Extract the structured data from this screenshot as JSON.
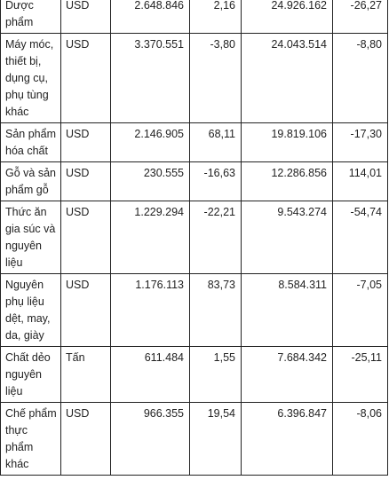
{
  "table": {
    "rows": [
      {
        "item": "Dược phẩm",
        "unit": "USD",
        "value_a": "2.648.846",
        "change_a": "2,16",
        "value_b": "24.926.162",
        "change_b": "-26,27"
      },
      {
        "item": "Máy móc, thiết bị, dụng cụ, phụ tùng khác",
        "unit": "USD",
        "value_a": "3.370.551",
        "change_a": "-3,80",
        "value_b": "24.043.514",
        "change_b": "-8,80"
      },
      {
        "item": "Sản phẩm hóa chất",
        "unit": "USD",
        "value_a": "2.146.905",
        "change_a": "68,11",
        "value_b": "19.819.106",
        "change_b": "-17,30"
      },
      {
        "item": "Gỗ và sản phẩm gỗ",
        "unit": "USD",
        "value_a": "230.555",
        "change_a": "-16,63",
        "value_b": "12.286.856",
        "change_b": "114,01"
      },
      {
        "item": "Thức ăn gia súc và nguyên liệu",
        "unit": "USD",
        "value_a": "1.229.294",
        "change_a": "-22,21",
        "value_b": "9.543.274",
        "change_b": "-54,74"
      },
      {
        "item": "Nguyên phụ liệu dệt, may, da, giày",
        "unit": "USD",
        "value_a": "1.176.113",
        "change_a": "83,73",
        "value_b": "8.584.311",
        "change_b": "-7,05"
      },
      {
        "item": "Chất dẻo nguyên liệu",
        "unit": "Tấn",
        "value_a": "611.484",
        "change_a": "1,55",
        "value_b": "7.684.342",
        "change_b": "-25,11"
      },
      {
        "item": "Chế phẩm thực phẩm khác",
        "unit": "USD",
        "value_a": "966.355",
        "change_a": "19,54",
        "value_b": "6.396.847",
        "change_b": "-8,06"
      }
    ]
  }
}
